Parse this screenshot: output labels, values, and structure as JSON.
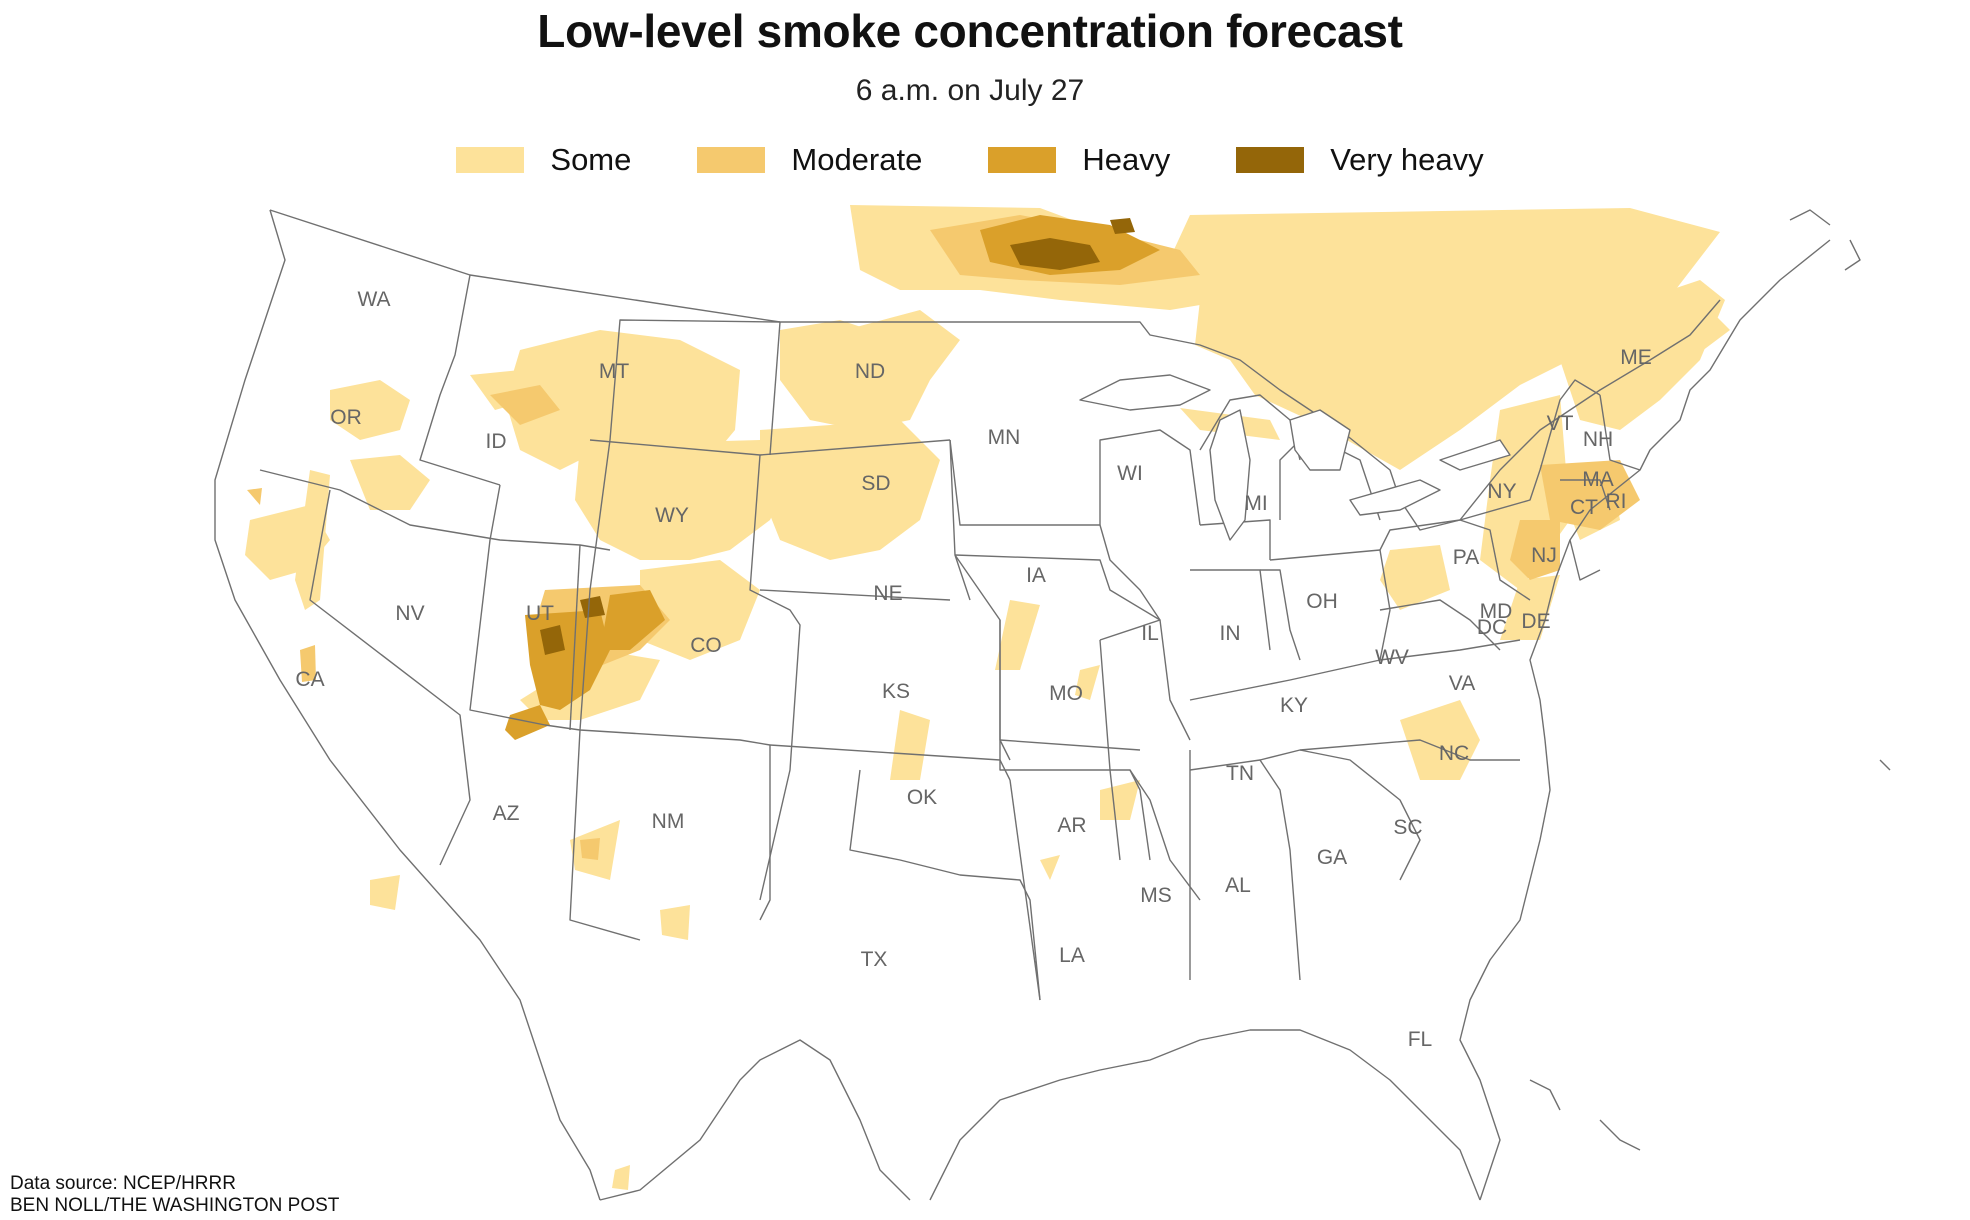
{
  "title": "Low-level smoke concentration forecast",
  "subtitle": "6 a.m. on July 27",
  "legend": [
    {
      "label": "Some",
      "color": "#fde29a"
    },
    {
      "label": "Moderate",
      "color": "#f5c96e"
    },
    {
      "label": "Heavy",
      "color": "#daa02a"
    },
    {
      "label": "Very heavy",
      "color": "#946609"
    }
  ],
  "colors": {
    "border": "#707070",
    "land": "#ffffff"
  },
  "states": [
    "WA",
    "OR",
    "CA",
    "ID",
    "NV",
    "MT",
    "WY",
    "UT",
    "AZ",
    "CO",
    "NM",
    "ND",
    "SD",
    "NE",
    "KS",
    "OK",
    "TX",
    "MN",
    "IA",
    "MO",
    "AR",
    "LA",
    "WI",
    "IL",
    "MI",
    "IN",
    "OH",
    "KY",
    "TN",
    "MS",
    "AL",
    "GA",
    "FL",
    "SC",
    "NC",
    "VA",
    "WV",
    "PA",
    "NY",
    "VT",
    "NH",
    "ME",
    "MA",
    "CT",
    "RI",
    "NJ",
    "MD",
    "DE",
    "DC"
  ],
  "source": {
    "line1": "Data source: NCEP/HRRR",
    "line2": "BEN NOLL/THE WASHINGTON POST"
  }
}
